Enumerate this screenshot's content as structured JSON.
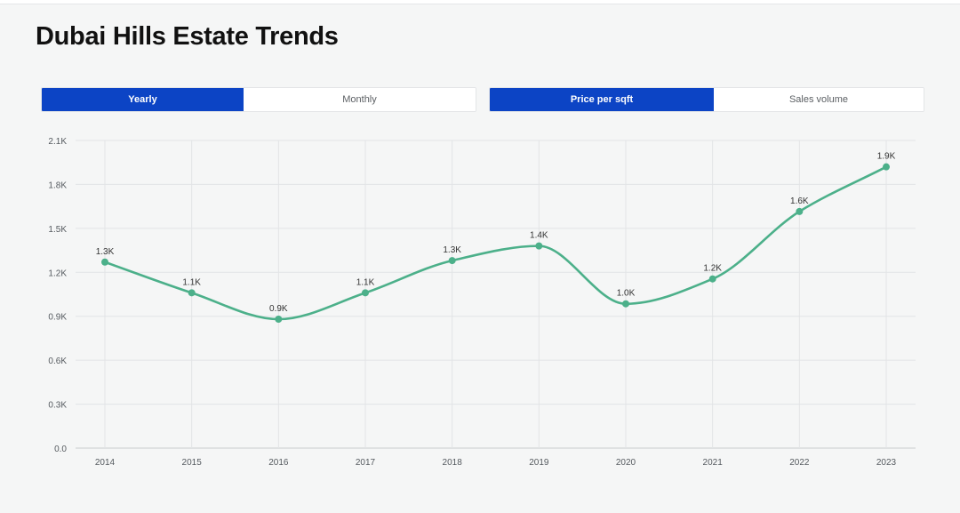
{
  "page": {
    "title": "Dubai Hills Estate Trends"
  },
  "period_toggle": {
    "options": [
      "Yearly",
      "Monthly"
    ],
    "selected": "Yearly"
  },
  "metric_toggle": {
    "options": [
      "Price per sqft",
      "Sales volume"
    ],
    "selected": "Price per sqft"
  },
  "colors": {
    "accent": "#0c44c5",
    "line": "#4cb08a",
    "grid": "#e2e4e6",
    "axis_text": "#555a5f",
    "label_text": "#333333"
  },
  "chart_data": {
    "type": "line",
    "title": "",
    "xlabel": "",
    "ylabel": "",
    "x": [
      "2014",
      "2015",
      "2016",
      "2017",
      "2018",
      "2019",
      "2020",
      "2021",
      "2022",
      "2023"
    ],
    "values": [
      1270,
      1060,
      880,
      1060,
      1280,
      1380,
      985,
      1155,
      1615,
      1920
    ],
    "data_labels": [
      "1.3K",
      "1.1K",
      "0.9K",
      "1.1K",
      "1.3K",
      "1.4K",
      "1.0K",
      "1.2K",
      "1.6K",
      "1.9K"
    ],
    "yticks": [
      0,
      300,
      600,
      900,
      1200,
      1500,
      1800,
      2100
    ],
    "ytick_labels": [
      "0.0",
      "0.3K",
      "0.6K",
      "0.9K",
      "1.2K",
      "1.5K",
      "1.8K",
      "2.1K"
    ],
    "ylim": [
      0,
      2100
    ],
    "grid": true,
    "curve": "smooth"
  }
}
